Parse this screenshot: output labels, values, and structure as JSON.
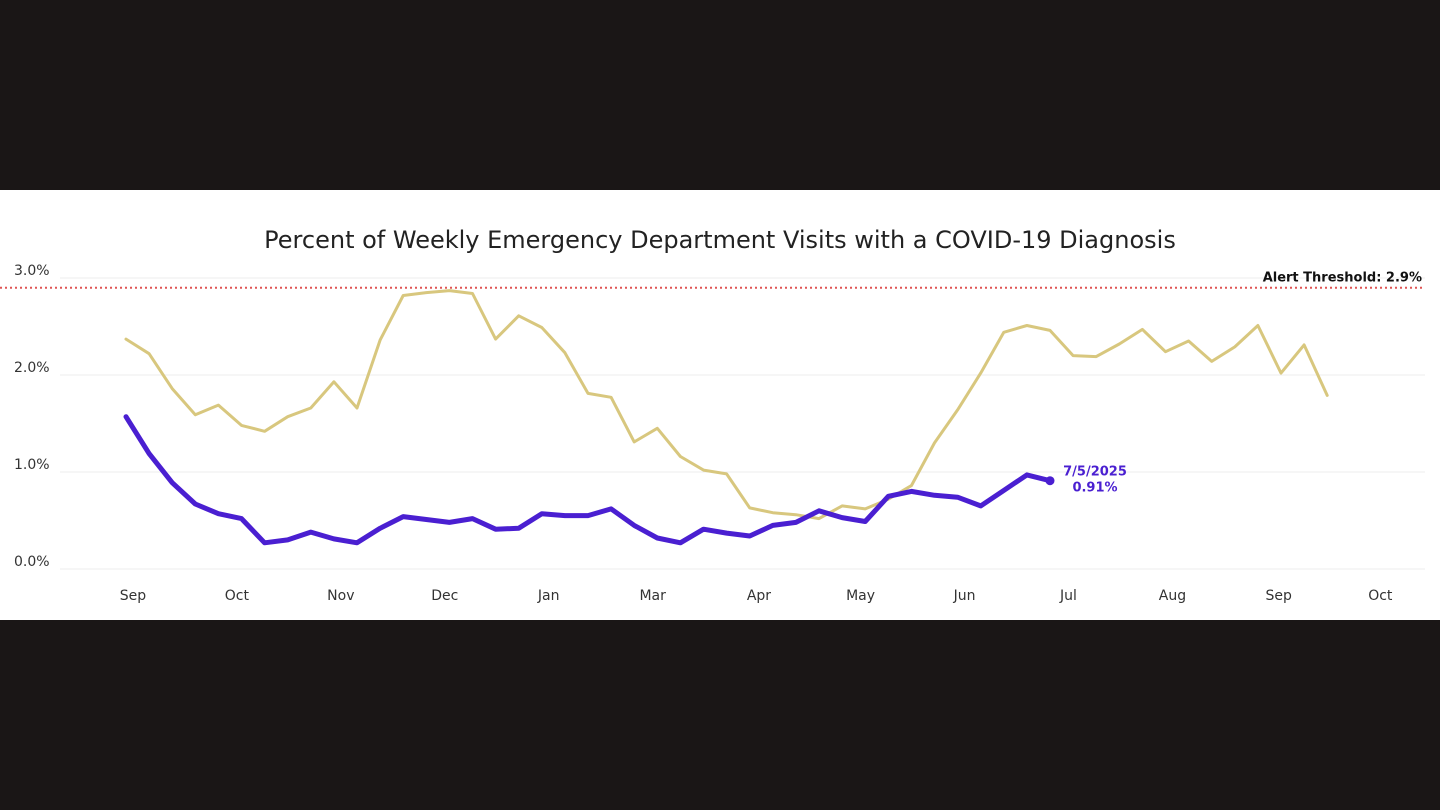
{
  "chart_data": {
    "type": "line",
    "title": "Percent of Weekly Emergency Department Visits with a COVID-19 Diagnosis",
    "xlabel": "",
    "ylabel": "",
    "ylim": [
      0,
      3.0
    ],
    "grid": true,
    "y_ticks": [
      {
        "value": 0.0,
        "label": "0.0%"
      },
      {
        "value": 1.0,
        "label": "1.0%"
      },
      {
        "value": 2.0,
        "label": "2.0%"
      },
      {
        "value": 3.0,
        "label": "3.0%"
      }
    ],
    "x_ticks": [
      {
        "week": 0.3,
        "label": "Sep"
      },
      {
        "week": 4.8,
        "label": "Oct"
      },
      {
        "week": 9.3,
        "label": "Nov"
      },
      {
        "week": 13.8,
        "label": "Dec"
      },
      {
        "week": 18.3,
        "label": "Jan"
      },
      {
        "week": 22.8,
        "label": "Mar"
      },
      {
        "week": 27.4,
        "label": "Apr"
      },
      {
        "week": 31.8,
        "label": "May"
      },
      {
        "week": 36.3,
        "label": "Jun"
      },
      {
        "week": 40.8,
        "label": "Jul"
      },
      {
        "week": 45.3,
        "label": "Aug"
      },
      {
        "week": 49.9,
        "label": "Sep"
      },
      {
        "week": 54.3,
        "label": "Oct"
      }
    ],
    "threshold": {
      "value": 2.9,
      "label": "Alert Threshold: 2.9%",
      "color": "#e05555"
    },
    "series": [
      {
        "color": "#d8c77e",
        "values": [
          2.37,
          2.22,
          1.86,
          1.59,
          1.69,
          1.48,
          1.42,
          1.57,
          1.66,
          1.93,
          1.66,
          2.36,
          2.82,
          2.85,
          2.87,
          2.84,
          2.37,
          2.61,
          2.49,
          2.23,
          1.81,
          1.77,
          1.31,
          1.45,
          1.16,
          1.02,
          0.98,
          0.63,
          0.58,
          0.56,
          0.52,
          0.65,
          0.62,
          0.72,
          0.86,
          1.3,
          1.64,
          2.02,
          2.44,
          2.51,
          2.46,
          2.2,
          2.19,
          2.32,
          2.47,
          2.24,
          2.35,
          2.14,
          2.29,
          2.51,
          2.02,
          2.31,
          1.79
        ]
      },
      {
        "color": "#4a1fd1",
        "values": [
          1.57,
          1.19,
          0.89,
          0.67,
          0.57,
          0.52,
          0.27,
          0.3,
          0.38,
          0.31,
          0.27,
          0.42,
          0.54,
          0.51,
          0.48,
          0.52,
          0.41,
          0.42,
          0.57,
          0.55,
          0.55,
          0.62,
          0.45,
          0.32,
          0.27,
          0.41,
          0.37,
          0.34,
          0.45,
          0.48,
          0.6,
          0.53,
          0.49,
          0.75,
          0.8,
          0.76,
          0.74,
          0.65,
          0.81,
          0.97,
          0.91
        ]
      }
    ],
    "annotation": {
      "date": "7/5/2025",
      "value_label": "0.91%",
      "color": "#4a1fd1"
    }
  }
}
